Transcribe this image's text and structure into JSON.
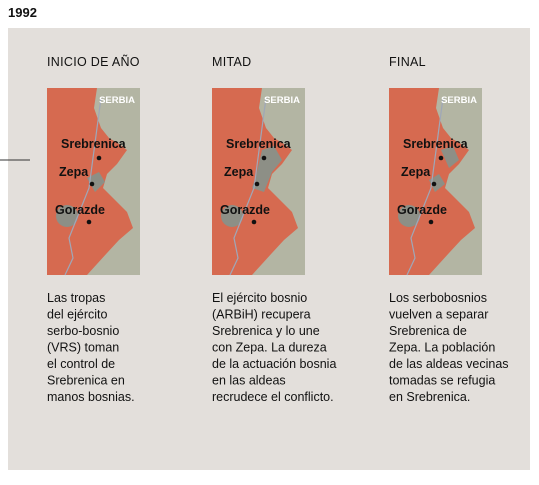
{
  "title": "1992",
  "panels": [
    {
      "heading": "INICIO DE AÑO",
      "region": "SERBIA",
      "places": [
        "Srebrenica",
        "Zepa",
        "Gorazde"
      ],
      "text": [
        "Las tropas",
        "del ejército",
        "serbo-bosnio",
        "(VRS) toman",
        "el control de",
        "Srebrenica en",
        "manos bosnias."
      ]
    },
    {
      "heading": "MITAD",
      "region": "SERBIA",
      "places": [
        "Srebrenica",
        "Zepa",
        "Gorazde"
      ],
      "text": [
        "El ejército bosnio",
        "(ARBiH) recupera",
        "Srebrenica y lo une",
        "con Zepa. La dureza",
        "de la actuación bosnia",
        "en las aldeas",
        "recrudece el conflicto."
      ]
    },
    {
      "heading": "FINAL",
      "region": "SERBIA",
      "places": [
        "Srebrenica",
        "Zepa",
        "Gorazde"
      ],
      "text": [
        "Los serbobosnios",
        "vuelven a separar",
        "Srebrenica de",
        "Zepa. La población",
        "de las aldeas vecinas",
        "tomadas se refugia",
        "en Srebrenica."
      ]
    }
  ]
}
